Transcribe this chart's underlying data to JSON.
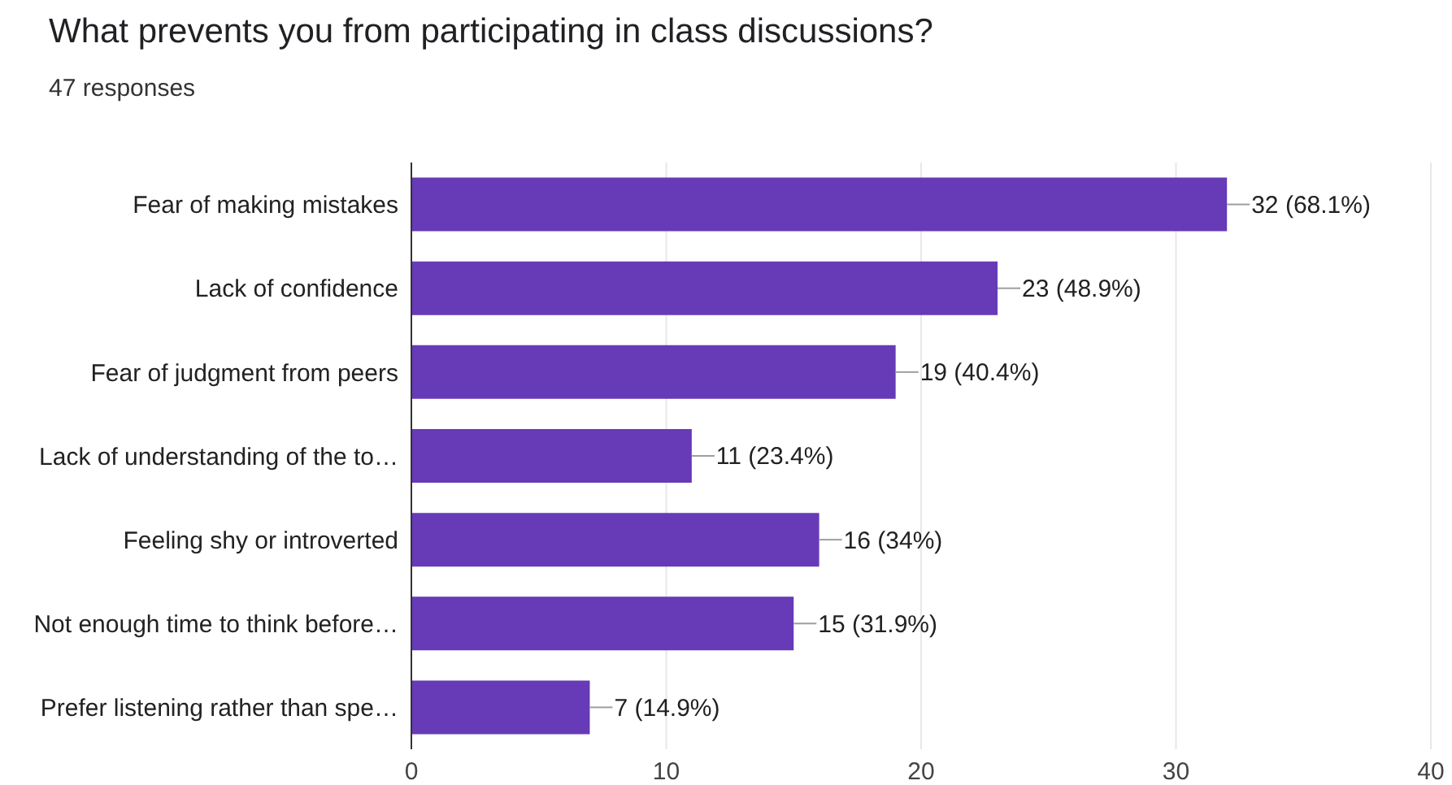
{
  "chart_data": {
    "type": "bar",
    "orientation": "horizontal",
    "title": "What prevents you from participating in class discussions?",
    "subtitle": "47 responses",
    "categories": [
      "Fear of making mistakes",
      "Lack of confidence",
      "Fear of judgment from peers",
      "Lack of understanding of the to…",
      "Feeling shy or introverted",
      "Not enough time to think before…",
      "Prefer listening rather than spe…"
    ],
    "values": [
      32,
      23,
      19,
      11,
      16,
      15,
      7
    ],
    "value_labels": [
      "32 (68.1%)",
      "23 (48.9%)",
      "19 (40.4%)",
      "11 (23.4%)",
      "16 (34%)",
      "15 (31.9%)",
      "7 (14.9%)"
    ],
    "color": "#673ab7",
    "xlim": [
      0,
      40
    ],
    "xticks": [
      0,
      10,
      20,
      30,
      40
    ],
    "grid": "x"
  }
}
